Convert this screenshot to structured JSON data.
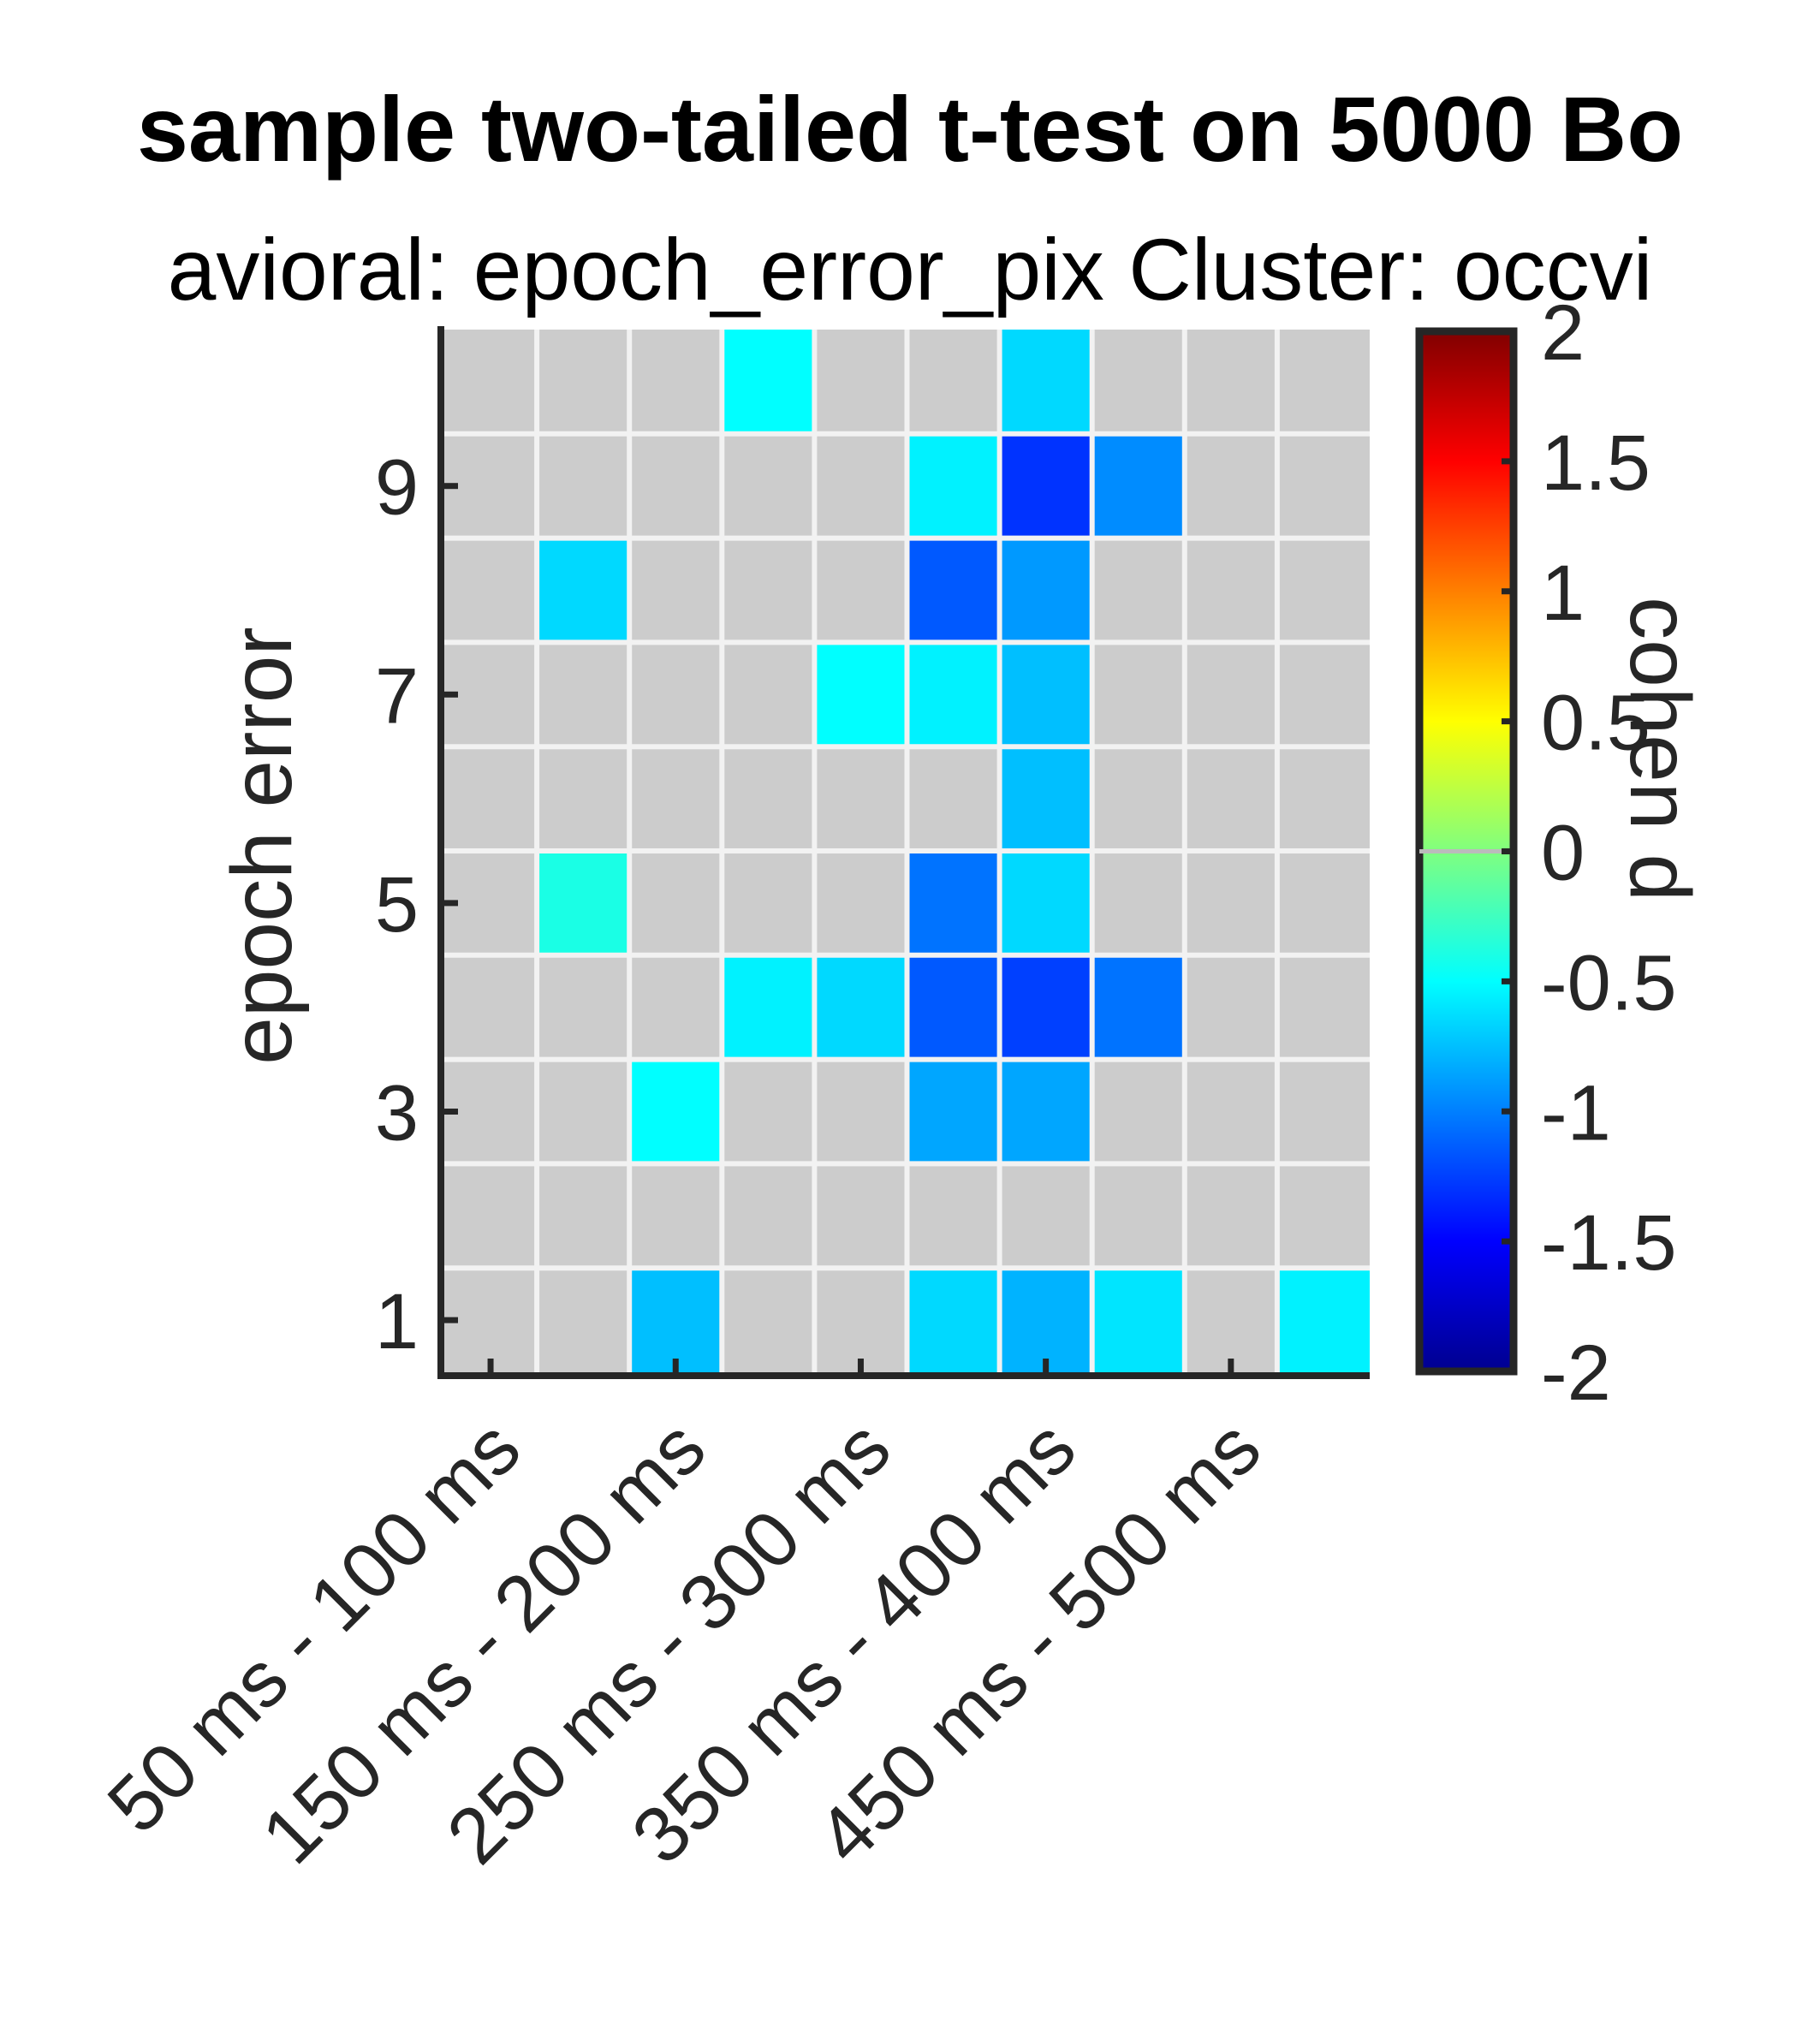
{
  "chart_data": {
    "type": "heatmap",
    "title": "sample two-tailed t-test on 5000 Bo",
    "subtitle": "avioral: epoch_error_pix Cluster: occvi",
    "ylabel": "epoch error",
    "xlabel": "",
    "colorbar_label": "cohen d",
    "colorbar_range": [
      -2,
      2
    ],
    "colorbar_ticks": [
      "2",
      "1.5",
      "1",
      "0.5",
      "0",
      "-0.5",
      "-1",
      "-1.5",
      "-2"
    ],
    "colormap": "jet",
    "masked_color": "#cccccc",
    "grid": true,
    "x_tick_labels": [
      "50 ms - 100 ms",
      "150 ms - 200 ms",
      "250 ms - 300 ms",
      "350 ms - 400 ms",
      "450 ms - 500 ms"
    ],
    "y_tick_labels": [
      "1",
      "3",
      "5",
      "7",
      "9"
    ],
    "n_cols": 10,
    "n_rows": 10,
    "rows_top_to_bottom": [
      [
        null,
        null,
        null,
        -0.5,
        null,
        null,
        -0.65,
        null,
        null,
        null
      ],
      [
        null,
        null,
        null,
        null,
        null,
        -0.55,
        -1.3,
        -0.95,
        null,
        null
      ],
      [
        null,
        -0.65,
        null,
        null,
        null,
        -1.15,
        -0.9,
        null,
        null,
        null
      ],
      [
        null,
        null,
        null,
        null,
        -0.5,
        -0.55,
        -0.75,
        null,
        null,
        null
      ],
      [
        null,
        null,
        null,
        null,
        null,
        null,
        -0.75,
        null,
        null,
        null
      ],
      [
        null,
        -0.4,
        null,
        null,
        null,
        -1.05,
        -0.65,
        null,
        null,
        null
      ],
      [
        null,
        null,
        null,
        -0.55,
        -0.65,
        -1.15,
        -1.25,
        -1.05,
        null,
        null
      ],
      [
        null,
        null,
        -0.5,
        null,
        null,
        -0.85,
        -0.85,
        null,
        null,
        null
      ],
      [
        null,
        null,
        null,
        null,
        null,
        null,
        null,
        null,
        null,
        null
      ],
      [
        null,
        null,
        -0.75,
        null,
        null,
        -0.65,
        -0.8,
        -0.6,
        null,
        -0.55
      ]
    ]
  }
}
